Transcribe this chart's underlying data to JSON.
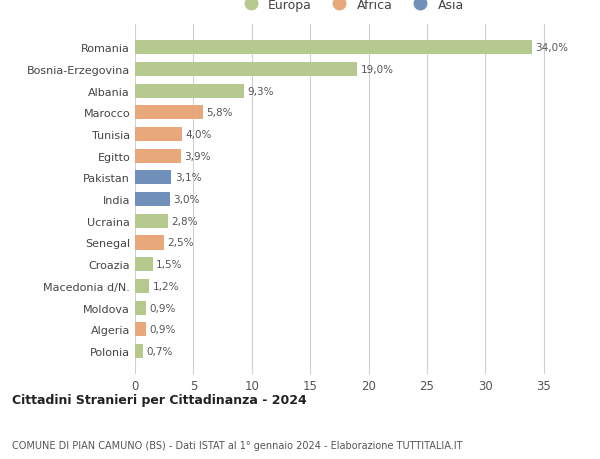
{
  "countries": [
    "Romania",
    "Bosnia-Erzegovina",
    "Albania",
    "Marocco",
    "Tunisia",
    "Egitto",
    "Pakistan",
    "India",
    "Ucraina",
    "Senegal",
    "Croazia",
    "Macedonia d/N.",
    "Moldova",
    "Algeria",
    "Polonia"
  ],
  "values": [
    34.0,
    19.0,
    9.3,
    5.8,
    4.0,
    3.9,
    3.1,
    3.0,
    2.8,
    2.5,
    1.5,
    1.2,
    0.9,
    0.9,
    0.7
  ],
  "labels": [
    "34,0%",
    "19,0%",
    "9,3%",
    "5,8%",
    "4,0%",
    "3,9%",
    "3,1%",
    "3,0%",
    "2,8%",
    "2,5%",
    "1,5%",
    "1,2%",
    "0,9%",
    "0,9%",
    "0,7%"
  ],
  "continents": [
    "Europa",
    "Europa",
    "Europa",
    "Africa",
    "Africa",
    "Africa",
    "Asia",
    "Asia",
    "Europa",
    "Africa",
    "Europa",
    "Europa",
    "Europa",
    "Africa",
    "Europa"
  ],
  "colors": {
    "Europa": "#b5c98e",
    "Africa": "#e8a87c",
    "Asia": "#7090bb"
  },
  "title": "Cittadini Stranieri per Cittadinanza - 2024",
  "subtitle": "COMUNE DI PIAN CAMUNO (BS) - Dati ISTAT al 1° gennaio 2024 - Elaborazione TUTTITALIA.IT",
  "xlim": [
    0,
    37
  ],
  "xticks": [
    0,
    5,
    10,
    15,
    20,
    25,
    30,
    35
  ],
  "background_color": "#ffffff",
  "grid_color": "#d0d0d0"
}
